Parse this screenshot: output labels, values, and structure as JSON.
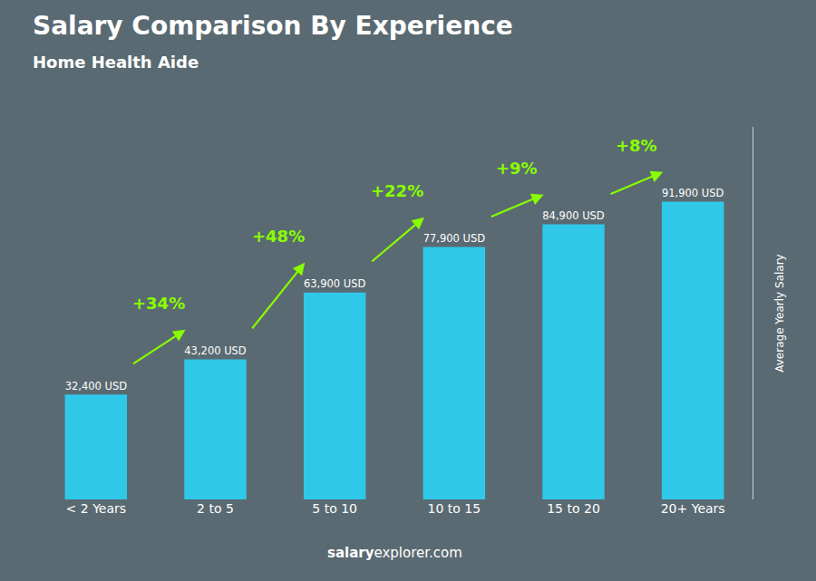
{
  "chart_data": {
    "type": "bar",
    "title": "Salary Comparison By Experience",
    "subtitle": "Home Health Aide",
    "categories": [
      "< 2 Years",
      "2 to 5",
      "5 to 10",
      "10 to 15",
      "15 to 20",
      "20+ Years"
    ],
    "values": [
      32400,
      43200,
      63900,
      77900,
      84900,
      91900
    ],
    "value_labels": [
      "32,400 USD",
      "43,200 USD",
      "63,900 USD",
      "77,900 USD",
      "84,900 USD",
      "91,900 USD"
    ],
    "data_labels": true,
    "color": "#2FC8E8",
    "ylabel": "Average Yearly Salary",
    "ylim": [
      0,
      115000
    ],
    "tick_labels": "x",
    "grid": false,
    "annotations": [
      {
        "text": "+34%",
        "color": "#88FF00"
      },
      {
        "text": "+48%",
        "color": "#88FF00"
      },
      {
        "text": "+22%",
        "color": "#88FF00"
      },
      {
        "text": "+9%",
        "color": "#88FF00"
      },
      {
        "text": "+8%",
        "color": "#88FF00"
      }
    ],
    "footer": [
      "salary",
      "explorer.com"
    ]
  }
}
